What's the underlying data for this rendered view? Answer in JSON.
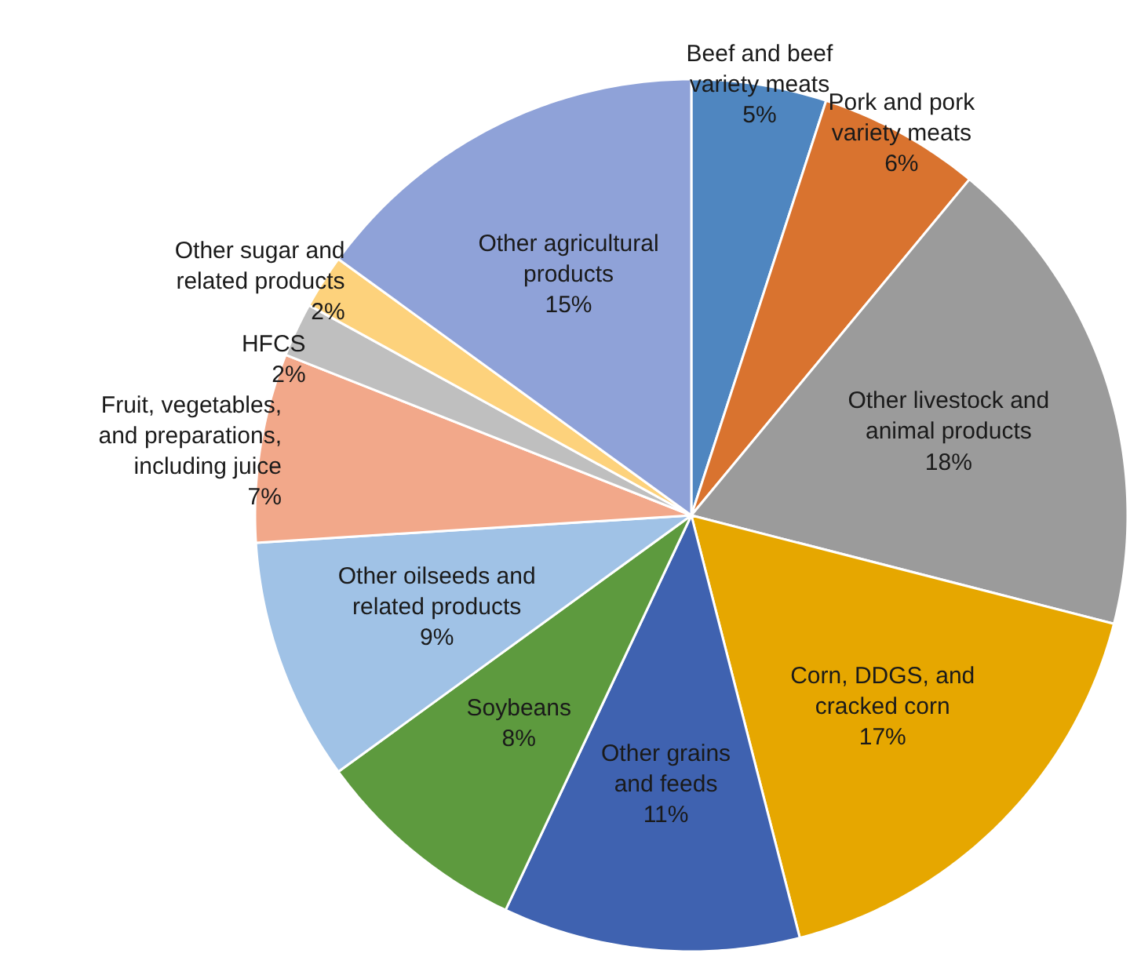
{
  "chart_data": {
    "type": "pie",
    "categories": [
      "Beef and beef\nvariety meats",
      "Pork and pork\nvariety meats",
      "Other livestock and\nanimal products",
      "Corn, DDGS, and\ncracked corn",
      "Other grains\nand feeds",
      "Soybeans",
      "Other oilseeds and\nrelated products",
      "Fruit, vegetables,\nand preparations,\nincluding juice",
      "HFCS",
      "Other sugar and\nrelated products",
      "Other agricultural\nproducts"
    ],
    "values": [
      5,
      6,
      18,
      17,
      11,
      8,
      9,
      7,
      2,
      2,
      15
    ],
    "value_labels": [
      "5%",
      "6%",
      "18%",
      "17%",
      "11%",
      "8%",
      "9%",
      "7%",
      "2%",
      "2%",
      "15%"
    ],
    "colors": [
      "#4f86c0",
      "#d9732f",
      "#9b9b9b",
      "#e6a700",
      "#3f62b0",
      "#5d9a3e",
      "#a0c2e6",
      "#f2a88a",
      "#bfbfbf",
      "#fdd27c",
      "#8fa2d8"
    ]
  }
}
